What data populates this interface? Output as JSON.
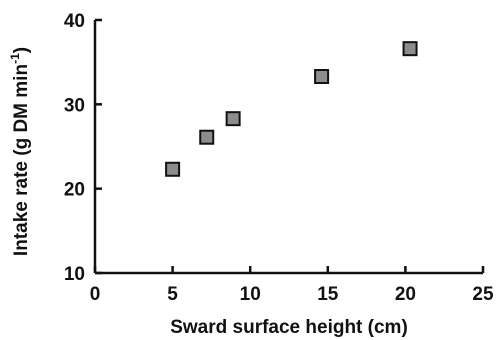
{
  "chart_data": {
    "type": "scatter",
    "title": "",
    "xlabel": "Sward surface height (cm)",
    "ylabel": "Intake rate (g DM min",
    "ylabel_sup": "-1",
    "ylabel_end": ")",
    "xlim": [
      0,
      25
    ],
    "ylim": [
      10,
      40
    ],
    "xticks": [
      0,
      5,
      10,
      15,
      20,
      25
    ],
    "yticks": [
      10,
      20,
      30,
      40
    ],
    "grid": false,
    "legend": "none",
    "marker": "square",
    "marker_color": "#8c8c8c",
    "series": [
      {
        "x": [
          5.0,
          7.2,
          8.9,
          14.6,
          20.3
        ],
        "y": [
          22.3,
          26.1,
          28.3,
          33.3,
          36.6
        ]
      }
    ]
  }
}
